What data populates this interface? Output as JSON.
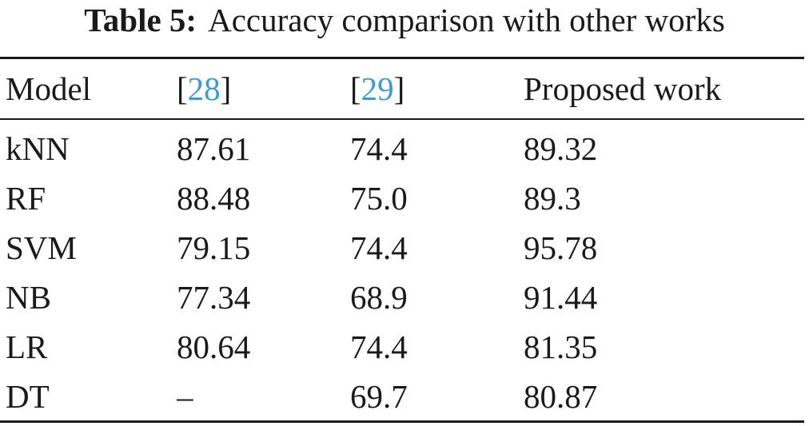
{
  "caption": {
    "label": "Table 5:",
    "text": "Accuracy comparison with other works"
  },
  "table": {
    "headers": [
      {
        "text": "Model"
      },
      {
        "open": "[",
        "ref": "28",
        "close": "]"
      },
      {
        "open": "[",
        "ref": "29",
        "close": "]"
      },
      {
        "text": "Proposed work"
      }
    ],
    "rows": [
      [
        "kNN",
        "87.61",
        "74.4",
        "89.32"
      ],
      [
        "RF",
        "88.48",
        "75.0",
        "89.3"
      ],
      [
        "SVM",
        "79.15",
        "74.4",
        "95.78"
      ],
      [
        "NB",
        "77.34",
        "68.9",
        "91.44"
      ],
      [
        "LR",
        "80.64",
        "74.4",
        "81.35"
      ],
      [
        "DT",
        "–",
        "69.7",
        "80.87"
      ]
    ]
  },
  "colors": {
    "text": "#1a1a1a",
    "citation_link": "#3a9ad6"
  }
}
